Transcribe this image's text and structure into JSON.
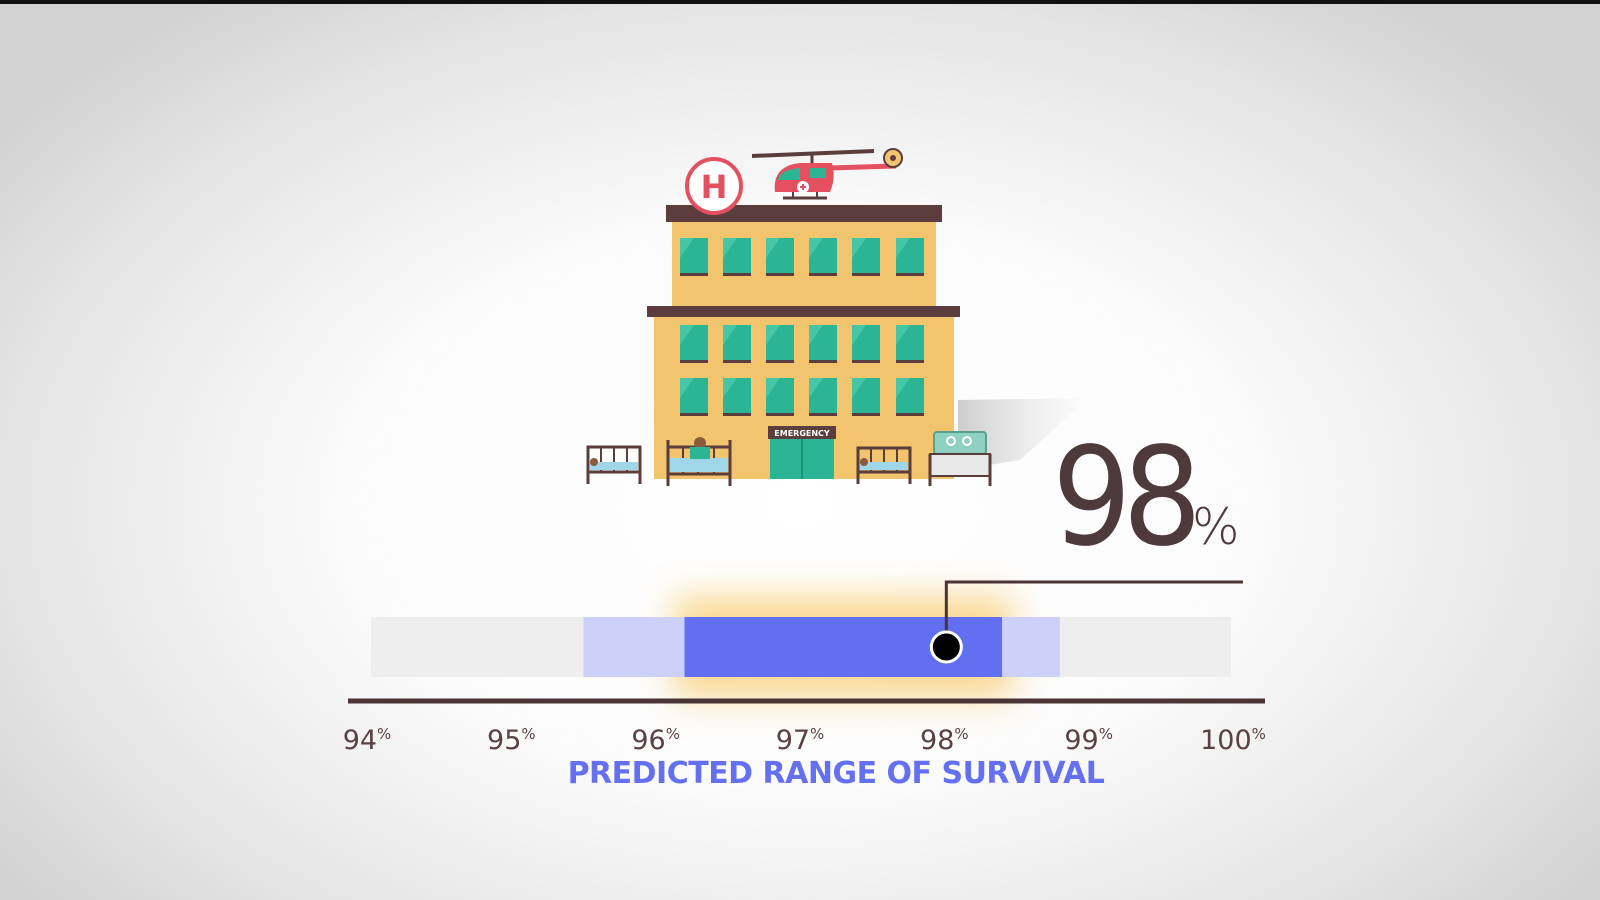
{
  "chart_data": {
    "type": "range",
    "xlabel": "PREDICTED RANGE OF SURVIVAL",
    "xlim": [
      94,
      100
    ],
    "ticks": [
      94,
      95,
      96,
      97,
      98,
      99,
      100
    ],
    "tick_unit": "%",
    "outer_range": [
      95.5,
      98.8
    ],
    "inner_range": [
      96.2,
      98.4
    ],
    "point_estimate": 98,
    "point_label": "98",
    "point_unit": "%",
    "colors": {
      "track": "#eeeeee",
      "outer_range": "#cdd1fa",
      "inner_range": "#636ff1",
      "glow": "#f7b733",
      "point": "#000000",
      "axis": "#4a3436",
      "title": "#6470ef"
    }
  },
  "illustration": {
    "hospital_sign": "H",
    "door_sign": "EMERGENCY"
  }
}
